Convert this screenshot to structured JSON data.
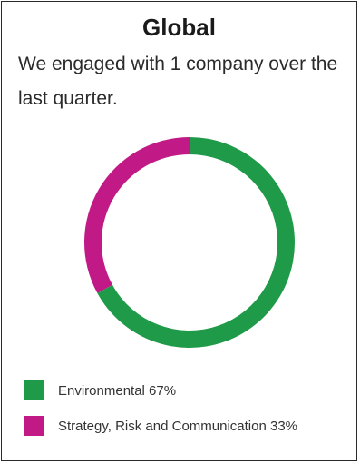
{
  "chart_data": {
    "type": "pie",
    "title": "Global",
    "subtitle": "We engaged with 1 company over the last quarter.",
    "series": [
      {
        "name": "Environmental",
        "value": 67,
        "label": "Environmental 67%",
        "color": "#1e9a48"
      },
      {
        "name": "Strategy, Risk and Communication",
        "value": 33,
        "label": "Strategy, Risk and Communication 33%",
        "color": "#c11a86"
      }
    ],
    "donut": true,
    "legend_position": "bottom-left"
  }
}
